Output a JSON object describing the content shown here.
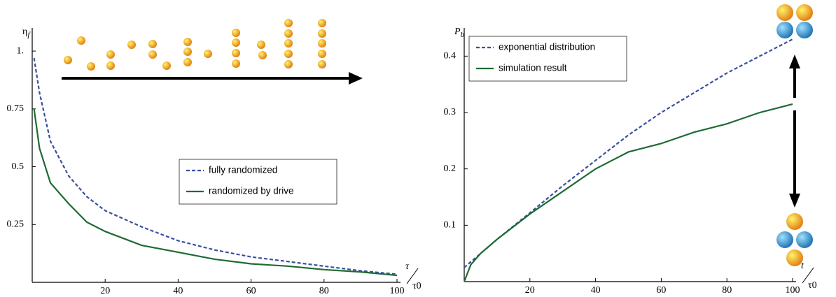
{
  "chart_data": [
    {
      "type": "line",
      "ylabel": "η",
      "ylabel_sub": "f",
      "xlabel_top": "τ",
      "xlabel_bottom": "τ0",
      "x": [
        0.5,
        2,
        5,
        10,
        15,
        20,
        30,
        40,
        50,
        60,
        70,
        80,
        90,
        100
      ],
      "series": [
        {
          "name": "fully randomized",
          "color": "#3a4fa0",
          "dash": true,
          "values": [
            0.97,
            0.82,
            0.61,
            0.46,
            0.37,
            0.31,
            0.24,
            0.18,
            0.14,
            0.11,
            0.09,
            0.07,
            0.05,
            0.035
          ]
        },
        {
          "name": "randomized by drive",
          "color": "#1e6b34",
          "dash": false,
          "values": [
            0.75,
            0.58,
            0.43,
            0.34,
            0.26,
            0.22,
            0.16,
            0.13,
            0.1,
            0.08,
            0.07,
            0.055,
            0.045,
            0.03
          ]
        }
      ],
      "xlim": [
        0,
        100
      ],
      "xticks": [
        20,
        40,
        60,
        80,
        100
      ],
      "ylim": [
        0,
        1.1
      ],
      "yticks": [
        0.25,
        0.5,
        0.75,
        {
          "value": 1,
          "label": "1."
        }
      ],
      "legend": "center right"
    },
    {
      "type": "line",
      "ylabel": "P",
      "ylabel_sub": "b",
      "xlabel_top": "t",
      "xlabel_bottom": "τ0",
      "x": [
        0,
        2,
        5,
        10,
        20,
        30,
        40,
        50,
        60,
        70,
        80,
        90,
        100
      ],
      "series": [
        {
          "name": "exponential distribution",
          "color": "#3a4fa0",
          "dash": true,
          "values": [
            0.025,
            0.035,
            0.05,
            0.075,
            0.122,
            0.17,
            0.215,
            0.26,
            0.3,
            0.335,
            0.37,
            0.4,
            0.43
          ]
        },
        {
          "name": "simulation result",
          "color": "#1e6b34",
          "dash": false,
          "values": [
            0,
            0.03,
            0.05,
            0.075,
            0.12,
            0.16,
            0.2,
            0.23,
            0.245,
            0.265,
            0.28,
            0.3,
            0.315
          ]
        }
      ],
      "xlim": [
        0,
        100
      ],
      "xticks": [
        20,
        40,
        60,
        80,
        100
      ],
      "ylim": [
        0,
        0.45
      ],
      "yticks": [
        0.1,
        0.2,
        0.3,
        0.4
      ],
      "legend": "upper left"
    }
  ]
}
